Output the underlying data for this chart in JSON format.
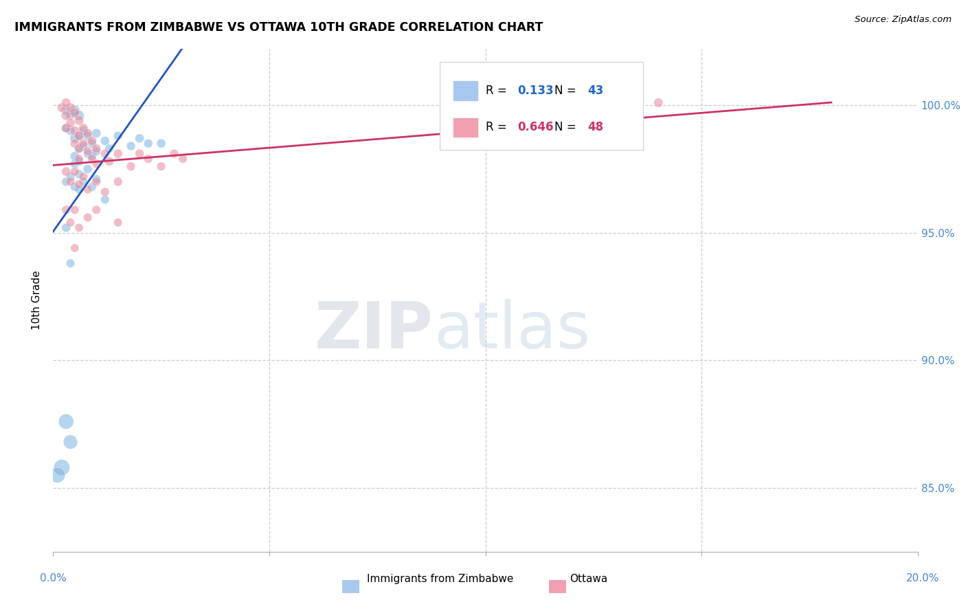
{
  "title": "IMMIGRANTS FROM ZIMBABWE VS OTTAWA 10TH GRADE CORRELATION CHART",
  "source": "Source: ZipAtlas.com",
  "ylabel": "10th Grade",
  "ytick_labels": [
    "85.0%",
    "90.0%",
    "95.0%",
    "100.0%"
  ],
  "ytick_values": [
    0.85,
    0.9,
    0.95,
    1.0
  ],
  "xlim": [
    0.0,
    0.2
  ],
  "ylim": [
    0.825,
    1.022
  ],
  "r_blue": 0.133,
  "n_blue": 43,
  "r_pink": 0.646,
  "n_pink": 48,
  "blue_color": "#7ab3e0",
  "pink_color": "#e8889a",
  "line_blue": "#2255bb",
  "line_pink": "#cc3366",
  "watermark_zip": "ZIP",
  "watermark_atlas": "atlas",
  "blue_points_x": [
    0.003,
    0.004,
    0.003,
    0.004,
    0.005,
    0.005,
    0.005,
    0.005,
    0.006,
    0.006,
    0.006,
    0.006,
    0.007,
    0.007,
    0.008,
    0.008,
    0.009,
    0.009,
    0.01,
    0.01,
    0.012,
    0.013,
    0.015,
    0.018,
    0.02,
    0.022,
    0.025,
    0.003,
    0.004,
    0.005,
    0.006,
    0.006,
    0.007,
    0.008,
    0.009,
    0.01,
    0.012,
    0.003,
    0.004,
    0.003,
    0.004,
    0.002,
    0.001
  ],
  "blue_points_y": [
    0.998,
    0.996,
    0.991,
    0.99,
    0.998,
    0.987,
    0.98,
    0.977,
    0.996,
    0.988,
    0.983,
    0.978,
    0.99,
    0.984,
    0.988,
    0.981,
    0.985,
    0.98,
    0.989,
    0.982,
    0.986,
    0.983,
    0.988,
    0.984,
    0.987,
    0.985,
    0.985,
    0.97,
    0.972,
    0.968,
    0.973,
    0.967,
    0.97,
    0.975,
    0.968,
    0.971,
    0.963,
    0.952,
    0.938,
    0.876,
    0.868,
    0.858,
    0.855
  ],
  "pink_points_x": [
    0.002,
    0.003,
    0.003,
    0.004,
    0.004,
    0.005,
    0.005,
    0.005,
    0.006,
    0.006,
    0.006,
    0.007,
    0.007,
    0.008,
    0.008,
    0.009,
    0.009,
    0.01,
    0.01,
    0.012,
    0.013,
    0.015,
    0.018,
    0.02,
    0.022,
    0.025,
    0.028,
    0.03,
    0.003,
    0.004,
    0.005,
    0.006,
    0.007,
    0.008,
    0.01,
    0.012,
    0.015,
    0.003,
    0.004,
    0.005,
    0.006,
    0.008,
    0.01,
    0.015,
    0.003,
    0.006,
    0.14,
    0.005
  ],
  "pink_points_y": [
    0.999,
    0.996,
    0.991,
    0.999,
    0.993,
    0.997,
    0.99,
    0.985,
    0.994,
    0.988,
    0.983,
    0.991,
    0.985,
    0.989,
    0.982,
    0.986,
    0.979,
    0.983,
    0.977,
    0.981,
    0.978,
    0.981,
    0.976,
    0.981,
    0.979,
    0.976,
    0.981,
    0.979,
    0.974,
    0.97,
    0.974,
    0.969,
    0.972,
    0.967,
    0.97,
    0.966,
    0.97,
    0.959,
    0.954,
    0.959,
    0.952,
    0.956,
    0.959,
    0.954,
    1.001,
    0.979,
    1.001,
    0.944
  ],
  "blue_sizes": [
    100,
    90,
    85,
    90,
    110,
    100,
    90,
    85,
    110,
    100,
    90,
    85,
    95,
    88,
    92,
    86,
    88,
    84,
    92,
    86,
    88,
    85,
    88,
    85,
    88,
    85,
    88,
    85,
    82,
    82,
    85,
    82,
    85,
    88,
    82,
    85,
    82,
    85,
    82,
    250,
    220,
    280,
    260
  ],
  "pink_sizes": [
    95,
    100,
    90,
    100,
    92,
    100,
    92,
    86,
    98,
    92,
    86,
    95,
    88,
    92,
    86,
    92,
    86,
    88,
    82,
    88,
    85,
    88,
    85,
    88,
    85,
    82,
    85,
    82,
    88,
    82,
    88,
    82,
    85,
    82,
    85,
    82,
    85,
    82,
    78,
    82,
    78,
    82,
    82,
    78,
    88,
    82,
    90,
    78
  ]
}
